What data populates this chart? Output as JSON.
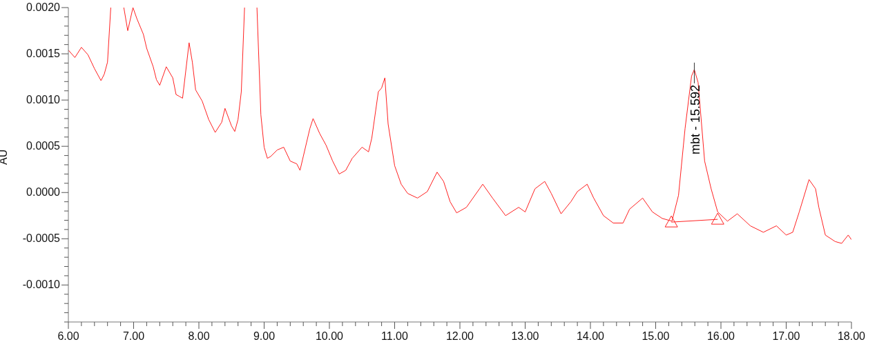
{
  "chart_data": {
    "type": "line",
    "ylabel": "AU",
    "xlim": [
      6,
      18
    ],
    "xticks": [
      {
        "value": 6,
        "label": "6.00"
      },
      {
        "value": 6.2,
        "label": null
      },
      {
        "value": 6.4,
        "label": null
      },
      {
        "value": 6.6,
        "label": null
      },
      {
        "value": 6.8,
        "label": null
      },
      {
        "value": 7,
        "label": "7.00"
      },
      {
        "value": 7.2,
        "label": null
      },
      {
        "value": 7.4,
        "label": null
      },
      {
        "value": 7.6,
        "label": null
      },
      {
        "value": 7.8,
        "label": null
      },
      {
        "value": 8,
        "label": "8.00"
      },
      {
        "value": 8.2,
        "label": null
      },
      {
        "value": 8.4,
        "label": null
      },
      {
        "value": 8.6,
        "label": null
      },
      {
        "value": 8.8,
        "label": null
      },
      {
        "value": 9,
        "label": "9.00"
      },
      {
        "value": 9.2,
        "label": null
      },
      {
        "value": 9.4,
        "label": null
      },
      {
        "value": 9.6,
        "label": null
      },
      {
        "value": 9.8,
        "label": null
      },
      {
        "value": 10,
        "label": "10.00"
      },
      {
        "value": 10.2,
        "label": null
      },
      {
        "value": 10.4,
        "label": null
      },
      {
        "value": 10.6,
        "label": null
      },
      {
        "value": 10.8,
        "label": null
      },
      {
        "value": 11,
        "label": "11.00"
      },
      {
        "value": 11.2,
        "label": null
      },
      {
        "value": 11.4,
        "label": null
      },
      {
        "value": 11.6,
        "label": null
      },
      {
        "value": 11.8,
        "label": null
      },
      {
        "value": 12,
        "label": "12.00"
      },
      {
        "value": 12.2,
        "label": null
      },
      {
        "value": 12.4,
        "label": null
      },
      {
        "value": 12.6,
        "label": null
      },
      {
        "value": 12.8,
        "label": null
      },
      {
        "value": 13,
        "label": "13.00"
      },
      {
        "value": 13.2,
        "label": null
      },
      {
        "value": 13.4,
        "label": null
      },
      {
        "value": 13.6,
        "label": null
      },
      {
        "value": 13.8,
        "label": null
      },
      {
        "value": 14,
        "label": "14.00"
      },
      {
        "value": 14.2,
        "label": null
      },
      {
        "value": 14.4,
        "label": null
      },
      {
        "value": 14.6,
        "label": null
      },
      {
        "value": 14.8,
        "label": null
      },
      {
        "value": 15,
        "label": "15.00"
      },
      {
        "value": 15.2,
        "label": null
      },
      {
        "value": 15.4,
        "label": null
      },
      {
        "value": 15.6,
        "label": null
      },
      {
        "value": 15.8,
        "label": null
      },
      {
        "value": 16,
        "label": "16.00"
      },
      {
        "value": 16.2,
        "label": null
      },
      {
        "value": 16.4,
        "label": null
      },
      {
        "value": 16.6,
        "label": null
      },
      {
        "value": 16.8,
        "label": null
      },
      {
        "value": 17,
        "label": "17.00"
      },
      {
        "value": 17.2,
        "label": null
      },
      {
        "value": 17.4,
        "label": null
      },
      {
        "value": 17.6,
        "label": null
      },
      {
        "value": 17.8,
        "label": null
      },
      {
        "value": 18,
        "label": "18.00"
      }
    ],
    "ylim": [
      -0.0014,
      0.002
    ],
    "yticks": [
      {
        "value": -0.0014,
        "label": null
      },
      {
        "value": -0.0013,
        "label": null
      },
      {
        "value": -0.0012,
        "label": null
      },
      {
        "value": -0.0011,
        "label": null
      },
      {
        "value": -0.001,
        "label": "-0.0010"
      },
      {
        "value": -0.0009,
        "label": null
      },
      {
        "value": -0.0008,
        "label": null
      },
      {
        "value": -0.0007,
        "label": null
      },
      {
        "value": -0.0006,
        "label": null
      },
      {
        "value": -0.0005,
        "label": "-0.0005"
      },
      {
        "value": -0.0004,
        "label": null
      },
      {
        "value": -0.0003,
        "label": null
      },
      {
        "value": -0.0002,
        "label": null
      },
      {
        "value": -0.0001,
        "label": null
      },
      {
        "value": 0,
        "label": "0.0000"
      },
      {
        "value": 0.0001,
        "label": null
      },
      {
        "value": 0.0002,
        "label": null
      },
      {
        "value": 0.0003,
        "label": null
      },
      {
        "value": 0.0004,
        "label": null
      },
      {
        "value": 0.0005,
        "label": "0.0005"
      },
      {
        "value": 0.0006,
        "label": null
      },
      {
        "value": 0.0007,
        "label": null
      },
      {
        "value": 0.0008,
        "label": null
      },
      {
        "value": 0.0009,
        "label": null
      },
      {
        "value": 0.001,
        "label": "0.0010"
      },
      {
        "value": 0.0011,
        "label": null
      },
      {
        "value": 0.0012,
        "label": null
      },
      {
        "value": 0.0013,
        "label": null
      },
      {
        "value": 0.0014,
        "label": null
      },
      {
        "value": 0.0015,
        "label": "0.0015"
      },
      {
        "value": 0.0016,
        "label": null
      },
      {
        "value": 0.0017,
        "label": null
      },
      {
        "value": 0.0018,
        "label": null
      },
      {
        "value": 0.0019,
        "label": null
      },
      {
        "value": 0.002,
        "label": "0.0020"
      }
    ],
    "grid": false,
    "series": [
      {
        "color": "#ff2020",
        "marker": "none",
        "x": [
          6,
          6.1,
          6.2,
          6.3,
          6.4,
          6.5,
          6.55,
          6.6,
          6.65,
          6.75,
          6.85,
          6.91,
          6.99,
          7.05,
          7.15,
          7.2,
          7.3,
          7.35,
          7.4,
          7.5,
          7.6,
          7.65,
          7.7,
          7.75,
          7.85,
          7.9,
          7.95,
          8.05,
          8.15,
          8.25,
          8.35,
          8.4,
          8.5,
          8.55,
          8.6,
          8.65,
          8.7,
          8.8,
          8.89,
          8.95,
          9,
          9.05,
          9.1,
          9.2,
          9.3,
          9.4,
          9.5,
          9.55,
          9.6,
          9.7,
          9.75,
          9.85,
          9.95,
          10.05,
          10.15,
          10.25,
          10.35,
          10.5,
          10.6,
          10.65,
          10.75,
          10.8,
          10.85,
          10.9,
          11,
          11.1,
          11.2,
          11.35,
          11.5,
          11.65,
          11.75,
          11.85,
          11.95,
          12.1,
          12.3,
          12.35,
          12.5,
          12.7,
          12.9,
          13,
          13.15,
          13.3,
          13.4,
          13.55,
          13.7,
          13.8,
          13.95,
          14.05,
          14.2,
          14.35,
          14.5,
          14.6,
          14.8,
          14.95,
          15.1,
          15.25,
          15.35,
          15.45,
          15.55,
          15.592,
          15.65,
          15.75,
          15.85,
          15.95,
          16.1,
          16.25,
          16.45,
          16.65,
          16.85,
          17,
          17.1,
          17.2,
          17.35,
          17.45,
          17.5,
          17.6,
          17.75,
          17.85,
          17.95,
          18
        ],
        "values": [
          0.00154,
          0.00146,
          0.00157,
          0.00149,
          0.00134,
          0.00121,
          0.00128,
          0.00141,
          0.002,
          null,
          0.002,
          0.00175,
          0.002,
          0.00188,
          0.00171,
          0.00156,
          0.00136,
          0.00122,
          0.00116,
          0.00136,
          0.00124,
          0.00106,
          0.00104,
          0.00102,
          0.00162,
          0.00141,
          0.00111,
          0.00099,
          0.00079,
          0.00065,
          0.00076,
          0.00091,
          0.00072,
          0.00066,
          0.00079,
          0.00109,
          0.002,
          null,
          0.002,
          0.00084,
          0.00049,
          0.00037,
          0.00039,
          0.00046,
          0.00049,
          0.00034,
          0.00031,
          0.00024,
          0.00039,
          0.00069,
          0.0008,
          0.00064,
          0.00051,
          0.00034,
          0.0002,
          0.00024,
          0.00037,
          0.00049,
          0.00044,
          0.00059,
          0.00109,
          0.00113,
          0.00124,
          0.00074,
          0.00029,
          9e-05,
          -1e-05,
          -6e-05,
          1e-05,
          0.00022,
          0.00012,
          -0.0001,
          -0.00022,
          -0.00016,
          4e-05,
          9e-05,
          -6e-05,
          -0.00025,
          -0.00016,
          -0.00021,
          4e-05,
          0.00012,
          -1e-05,
          -0.00023,
          -0.0001,
          1e-05,
          9e-05,
          -6e-05,
          -0.00025,
          -0.00033,
          -0.00033,
          -0.00018,
          -6e-05,
          -0.00021,
          -0.00028,
          -0.00031,
          -3e-05,
          0.00069,
          0.00126,
          0.00133,
          0.00119,
          0.00034,
          4e-05,
          -0.00021,
          -0.00031,
          -0.00023,
          -0.00036,
          -0.00043,
          -0.00036,
          -0.00046,
          -0.00043,
          -0.00021,
          0.00014,
          4e-05,
          -0.00016,
          -0.00046,
          -0.00053,
          -0.00055,
          -0.00046,
          -0.00051
        ]
      },
      {
        "type": "line",
        "color": "#ff2020",
        "marker": "triangle",
        "x": [
          15.24,
          15.95
        ],
        "values": [
          -0.00032,
          -0.00029
        ]
      }
    ],
    "annotations": [
      {
        "text": "mbt - 15.592",
        "x": 15.592,
        "y": 0.00133
      }
    ]
  }
}
